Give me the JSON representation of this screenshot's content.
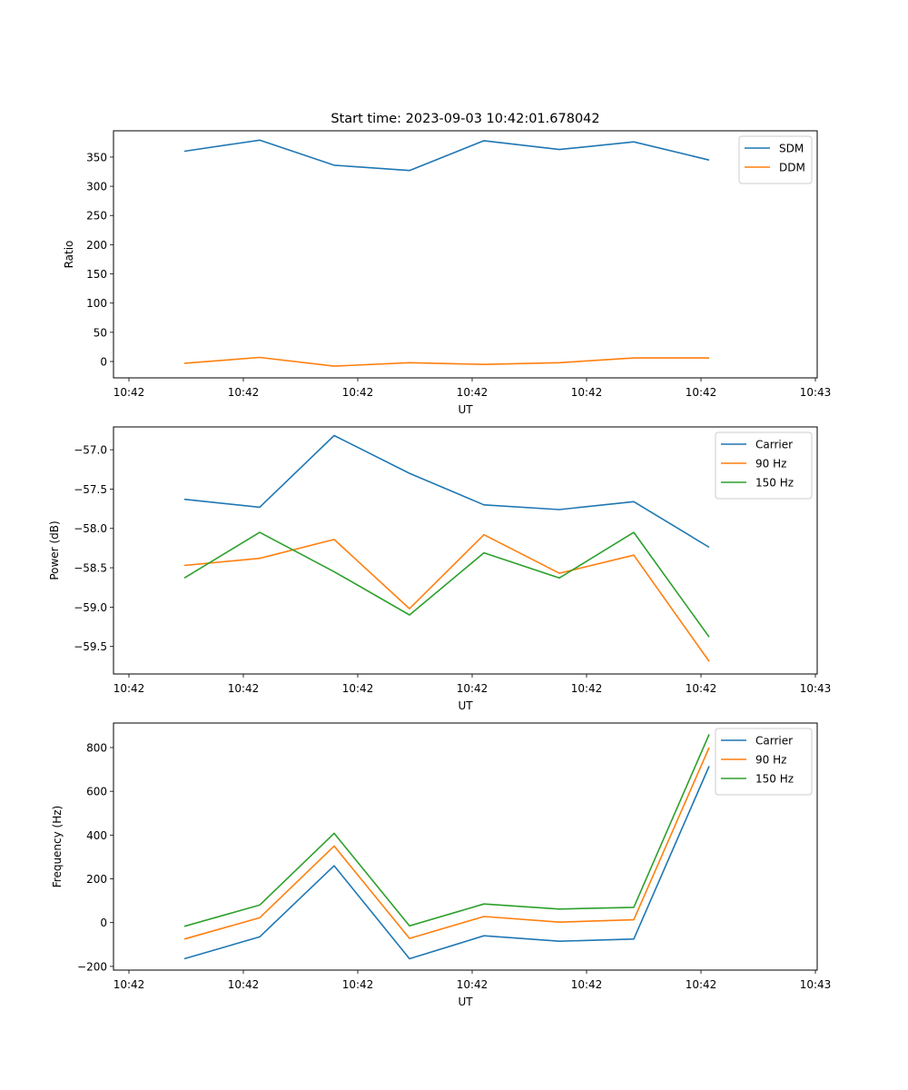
{
  "chart_data": [
    {
      "type": "line",
      "title": "Start time: 2023-09-03 10:42:01.678042",
      "xlabel": "UT",
      "ylabel": "Ratio",
      "x_tick_labels": [
        "10:42",
        "10:42",
        "10:42",
        "10:42",
        "10:42",
        "10:42",
        "10:42",
        "10:43"
      ],
      "y_ticks": [
        0,
        50,
        100,
        150,
        200,
        250,
        300,
        350
      ],
      "ylim": [
        -28,
        395
      ],
      "legend": "top-right",
      "grid": false,
      "series": [
        {
          "name": "SDM",
          "color": "#1f77b4",
          "values": [
            360,
            379,
            336,
            327,
            378,
            363,
            376,
            345
          ]
        },
        {
          "name": "DDM",
          "color": "#ff7f0e",
          "values": [
            -3,
            7,
            -8,
            -2,
            -5,
            -2,
            6,
            6
          ]
        }
      ]
    },
    {
      "type": "line",
      "title": "",
      "xlabel": "UT",
      "ylabel": "Power (dB)",
      "x_tick_labels": [
        "10:42",
        "10:42",
        "10:42",
        "10:42",
        "10:42",
        "10:42",
        "10:42",
        "10:43"
      ],
      "y_ticks": [
        -57.0,
        -57.5,
        -58.0,
        -58.5,
        -59.0,
        -59.5
      ],
      "y_tick_labels": [
        "−57.0",
        "−57.5",
        "−58.0",
        "−58.5",
        "−59.0",
        "−59.5"
      ],
      "ylim": [
        -59.85,
        -56.71
      ],
      "legend": "top-right",
      "grid": false,
      "series": [
        {
          "name": "Carrier",
          "color": "#1f77b4",
          "values": [
            -57.63,
            -57.73,
            -56.82,
            -57.3,
            -57.7,
            -57.76,
            -57.66,
            -58.24
          ]
        },
        {
          "name": "90 Hz",
          "color": "#ff7f0e",
          "values": [
            -58.47,
            -58.38,
            -58.14,
            -59.02,
            -58.08,
            -58.57,
            -58.34,
            -59.69
          ]
        },
        {
          "name": "150 Hz",
          "color": "#2ca02c",
          "values": [
            -58.63,
            -58.05,
            -58.55,
            -59.1,
            -58.31,
            -58.63,
            -58.05,
            -59.38
          ]
        }
      ]
    },
    {
      "type": "line",
      "title": "",
      "xlabel": "UT",
      "ylabel": "Frequency (Hz)",
      "x_tick_labels": [
        "10:42",
        "10:42",
        "10:42",
        "10:42",
        "10:42",
        "10:42",
        "10:42",
        "10:43"
      ],
      "y_ticks": [
        -200,
        0,
        200,
        400,
        600,
        800
      ],
      "y_tick_labels": [
        "−200",
        "0",
        "200",
        "400",
        "600",
        "800"
      ],
      "ylim": [
        -217,
        912
      ],
      "legend": "top-right",
      "grid": false,
      "series": [
        {
          "name": "Carrier",
          "color": "#1f77b4",
          "values": [
            -165,
            -65,
            260,
            -165,
            -60,
            -85,
            -75,
            715
          ]
        },
        {
          "name": "90 Hz",
          "color": "#ff7f0e",
          "values": [
            -75,
            22,
            350,
            -72,
            28,
            2,
            13,
            800
          ]
        },
        {
          "name": "150 Hz",
          "color": "#2ca02c",
          "values": [
            -17,
            80,
            408,
            -15,
            85,
            62,
            70,
            860
          ]
        }
      ]
    }
  ]
}
